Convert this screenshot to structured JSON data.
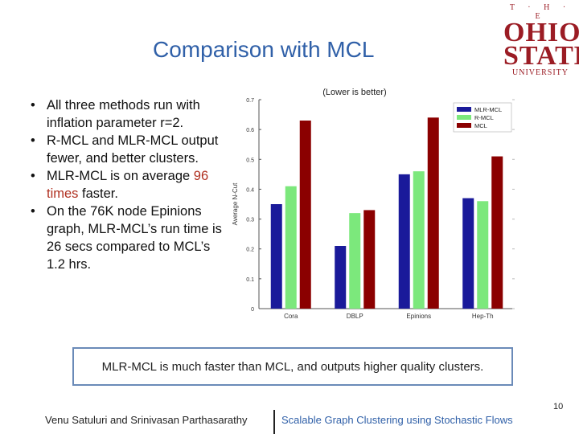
{
  "slide": {
    "title": "Comparison with MCL",
    "page_number": "10"
  },
  "logo": {
    "line1": "T · H · E",
    "line2": "OHIO",
    "line3": "STATE",
    "line4": "UNIVERSITY"
  },
  "bullets": [
    {
      "text": "All three methods run with inflation parameter r=2."
    },
    {
      "text": "R-MCL and MLR-MCL output fewer, and better clusters."
    },
    {
      "pre": "MLR-MCL is on average ",
      "highlight": "96 times",
      "post": " faster."
    },
    {
      "text": "On the 76K node Epinions graph, MLR-MCL’s run time is 26 secs compared to MCL’s 1.2 hrs."
    }
  ],
  "callout": "MLR-MCL is much faster than MCL, and outputs higher quality clusters.",
  "footer": {
    "authors": "Venu Satuluri and Srinivasan Parthasarathy",
    "talk_title": "Scalable Graph Clustering using Stochastic Flows"
  },
  "colors": {
    "title": "#3060a8",
    "highlight": "#b03020",
    "mlr": "#1a1a9a",
    "rmcl": "#7ce87c",
    "mcl": "#8b0000"
  },
  "chart_data": {
    "type": "bar",
    "title": "(Lower is better)",
    "xlabel": "",
    "ylabel": "Average N-Cut",
    "categories": [
      "Cora",
      "DBLP",
      "Epinions",
      "Hep-Th"
    ],
    "series": [
      {
        "name": "MLR-MCL",
        "values": [
          0.35,
          0.21,
          0.45,
          0.37
        ]
      },
      {
        "name": "R-MCL",
        "values": [
          0.41,
          0.32,
          0.46,
          0.36
        ]
      },
      {
        "name": "MCL",
        "values": [
          0.63,
          0.33,
          0.64,
          0.51
        ]
      }
    ],
    "ylim": [
      0,
      0.7
    ],
    "yticks": [
      "0",
      "0.1",
      "0.2",
      "0.3",
      "0.4",
      "0.5",
      "0.6",
      "0.7"
    ],
    "legend": "top-right"
  }
}
